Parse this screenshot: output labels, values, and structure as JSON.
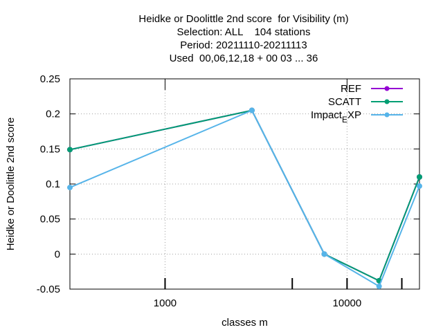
{
  "title": {
    "line1": "Heidke or Doolittle 2nd score  for Visibility (m)",
    "line2": "Selection: ALL    104 stations",
    "line3": "Period: 20211110-20211113",
    "line4": "Used  00,06,12,18 + 00 03 ... 36"
  },
  "chart_data": {
    "type": "line",
    "title": "Heidke or Doolittle 2nd score  for Visibility (m)",
    "xlabel": "classes m",
    "ylabel": "Heidke or Doolittle 2nd score",
    "x_scale": "log",
    "xlim": [
      300,
      25000
    ],
    "ylim": [
      -0.05,
      0.25
    ],
    "x_ticks": [
      1000,
      10000
    ],
    "x_tick_labels": [
      "1000",
      "10000"
    ],
    "y_ticks": [
      -0.05,
      0,
      0.05,
      0.1,
      0.15,
      0.2,
      0.25
    ],
    "y_tick_labels": [
      "-0.05",
      "0",
      "0.05",
      "0.1",
      "0.15",
      "0.2",
      "0.25"
    ],
    "grid": true,
    "legend_position": "top-right",
    "extra_ticks": [
      5000,
      20000
    ],
    "series": [
      {
        "name": "REF",
        "color": "#9400d3",
        "x": [
          300,
          3000,
          7500,
          15000,
          25000
        ],
        "y": [
          0.149,
          0.205,
          0.0,
          -0.038,
          0.11
        ]
      },
      {
        "name": "SCATT",
        "color": "#009e73",
        "x": [
          300,
          3000,
          7500,
          15000,
          25000
        ],
        "y": [
          0.149,
          0.205,
          0.0,
          -0.038,
          0.11
        ]
      },
      {
        "name": "Impact_EXP",
        "legend_main": "Impact",
        "legend_sub": "E",
        "legend_rest": "XP",
        "color": "#56b4e9",
        "x": [
          300,
          3000,
          7500,
          15000,
          25000
        ],
        "y": [
          0.095,
          0.205,
          0.0,
          -0.046,
          0.097
        ]
      }
    ]
  }
}
